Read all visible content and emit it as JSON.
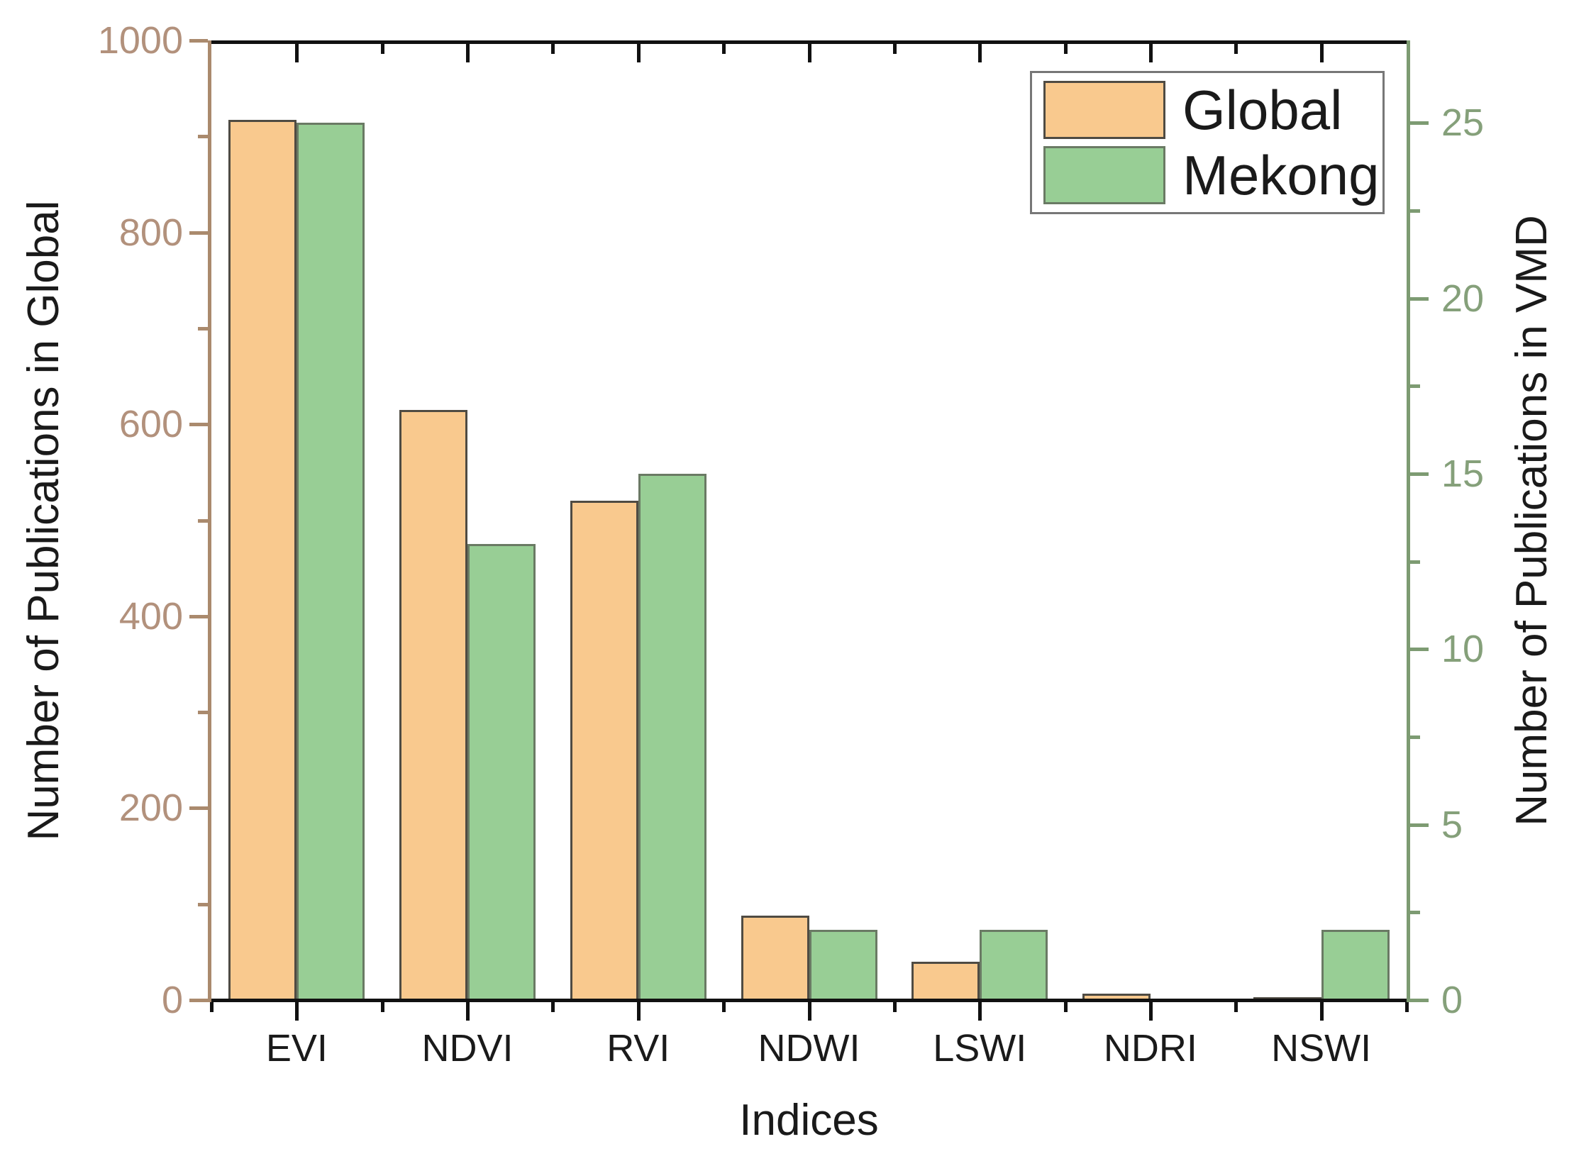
{
  "chart_data": {
    "type": "bar",
    "title": "",
    "xlabel": "Indices",
    "ylabel_left": "Number of Publications in Global",
    "ylabel_right": "Number of Publications in VMD",
    "categories": [
      "EVI",
      "NDVI",
      "RVI",
      "NDWI",
      "LSWI",
      "NDRI",
      "NSWI"
    ],
    "series": [
      {
        "name": "Global",
        "axis": "left",
        "color": "#f9c98e",
        "border_color": "#4f4b43",
        "values": [
          917,
          615,
          520,
          88,
          40,
          7,
          3
        ]
      },
      {
        "name": "Mekong",
        "axis": "right",
        "color": "#98ce95",
        "border_color": "#6a7a64",
        "values": [
          25,
          13,
          15,
          2,
          2,
          0,
          2
        ]
      }
    ],
    "left_axis": {
      "min": 0,
      "max": 1000,
      "major_ticks": [
        0,
        200,
        400,
        600,
        800,
        1000
      ],
      "tick_labels": [
        "0",
        "200",
        "400",
        "600",
        "800",
        "1000"
      ],
      "minor_step": 100,
      "line_color": "#aa8a6d",
      "text_color": "#b2917c"
    },
    "right_axis": {
      "min": 0,
      "max": 27.35,
      "major_ticks": [
        0,
        5,
        10,
        15,
        20,
        25
      ],
      "tick_labels": [
        "0",
        "5",
        "10",
        "15",
        "20",
        "25"
      ],
      "minor_step": 2.5,
      "line_color": "#7d9b72",
      "text_color": "#85a07a"
    },
    "legend": {
      "position": "top-right",
      "entries": [
        "Global",
        "Mekong"
      ]
    },
    "grid": false
  }
}
